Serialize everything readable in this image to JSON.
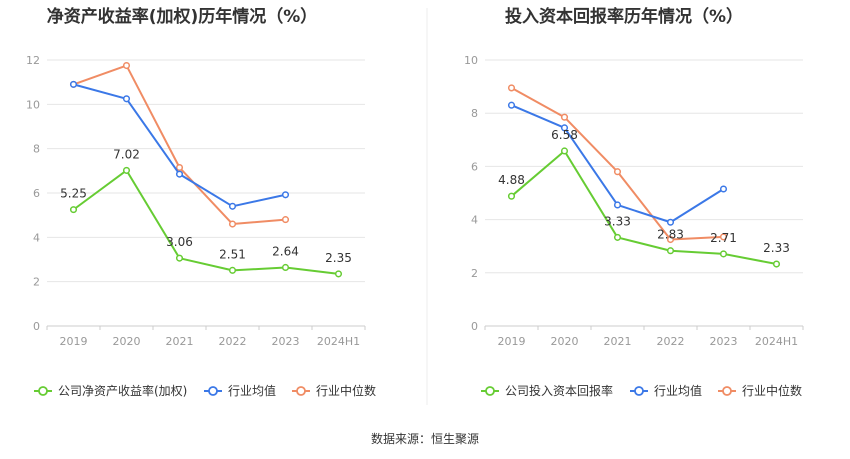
{
  "source_label": "数据来源：恒生聚源",
  "colors": {
    "company": "#66cc33",
    "industry_avg": "#3b78e7",
    "industry_median": "#f08c64",
    "grid": "#e6e6e6",
    "axis": "#cccccc",
    "divider": "#eeeeee"
  },
  "chart_data": [
    {
      "type": "line",
      "title": "净资产收益率(加权)历年情况（%）",
      "categories": [
        "2019",
        "2020",
        "2021",
        "2022",
        "2023",
        "2024H1"
      ],
      "ylim": [
        0,
        12
      ],
      "yticks": [
        0,
        2,
        4,
        6,
        8,
        10,
        12
      ],
      "grid": true,
      "legend_position": "bottom",
      "series": [
        {
          "key": "company",
          "name": "公司净资产收益率(加权)",
          "values": [
            5.25,
            7.02,
            3.06,
            2.51,
            2.64,
            2.35
          ],
          "labels": [
            "5.25",
            "7.02",
            "3.06",
            "2.51",
            "2.64",
            "2.35"
          ]
        },
        {
          "key": "industry_avg",
          "name": "行业均值",
          "values": [
            10.9,
            10.25,
            6.85,
            5.4,
            5.92,
            null
          ]
        },
        {
          "key": "industry_median",
          "name": "行业中位数",
          "values": [
            10.9,
            11.75,
            7.15,
            4.6,
            4.8,
            null
          ]
        }
      ]
    },
    {
      "type": "line",
      "title": "投入资本回报率历年情况（%）",
      "categories": [
        "2019",
        "2020",
        "2021",
        "2022",
        "2023",
        "2024H1"
      ],
      "ylim": [
        0,
        10
      ],
      "yticks": [
        0,
        2,
        4,
        6,
        8,
        10
      ],
      "grid": true,
      "legend_position": "bottom",
      "series": [
        {
          "key": "company",
          "name": "公司投入资本回报率",
          "values": [
            4.88,
            6.58,
            3.33,
            2.83,
            2.71,
            2.33
          ],
          "labels": [
            "4.88",
            "6.58",
            "3.33",
            "2.83",
            "2.71",
            "2.33"
          ]
        },
        {
          "key": "industry_avg",
          "name": "行业均值",
          "values": [
            8.3,
            7.45,
            4.55,
            3.9,
            5.15,
            null
          ]
        },
        {
          "key": "industry_median",
          "name": "行业中位数",
          "values": [
            8.95,
            7.85,
            5.8,
            3.25,
            3.35,
            null
          ]
        }
      ]
    }
  ]
}
